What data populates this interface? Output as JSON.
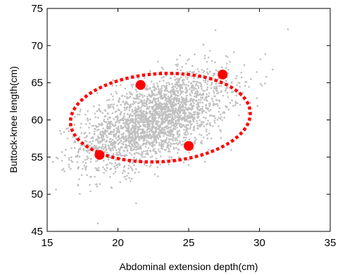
{
  "chart_data": {
    "type": "scatter",
    "title": "",
    "xlabel": "Abdominal extension depth(cm)",
    "ylabel": "Buttock-knee length(cm)",
    "xlim": [
      15,
      35
    ],
    "ylim": [
      45,
      75
    ],
    "xticks": [
      15,
      20,
      25,
      30,
      35
    ],
    "yticks": [
      45,
      50,
      55,
      60,
      65,
      70,
      75
    ],
    "grid": false,
    "legend": "none",
    "scatter_color": "#c0c0c0",
    "highlight_color": "#ff0000",
    "scatter_distribution": {
      "count": 2600,
      "x_mean": 22.6,
      "x_sd": 2.6,
      "y_mean": 60.0,
      "y_sd": 3.2,
      "correlation": 0.55
    },
    "highlight_points": [
      {
        "x": 18.7,
        "y": 55.3
      },
      {
        "x": 21.6,
        "y": 64.7
      },
      {
        "x": 25.0,
        "y": 56.5
      },
      {
        "x": 27.4,
        "y": 66.1
      }
    ],
    "confidence_ellipse": {
      "center_x": 23.0,
      "center_y": 60.3,
      "semi_major": 6.5,
      "semi_minor": 5.8,
      "angle_deg": 28
    }
  }
}
